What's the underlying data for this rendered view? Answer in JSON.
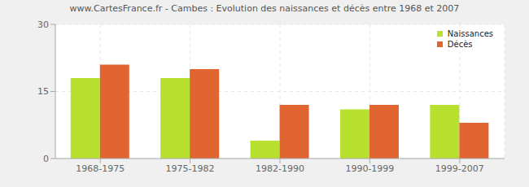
{
  "chart_data": {
    "type": "bar",
    "title": "www.CartesFrance.fr - Cambes : Evolution des naissances et décès entre 1968 et 2007",
    "categories": [
      "1968-1975",
      "1975-1982",
      "1982-1990",
      "1990-1999",
      "1999-2007"
    ],
    "series": [
      {
        "name": "Naissances",
        "color": "#b8e02e",
        "values": [
          18,
          18,
          4,
          11,
          12
        ]
      },
      {
        "name": "Décès",
        "color": "#e06530",
        "values": [
          21,
          20,
          12,
          12,
          8
        ]
      }
    ],
    "ylim": [
      0,
      30
    ],
    "yticks": [
      0,
      15,
      30
    ],
    "grid": true,
    "legend": "top-right"
  }
}
